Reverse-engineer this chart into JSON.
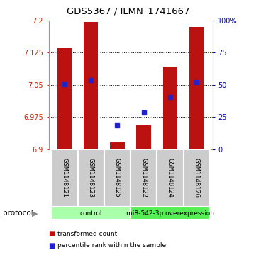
{
  "title": "GDS5367 / ILMN_1741667",
  "samples": [
    "GSM1148121",
    "GSM1148123",
    "GSM1148125",
    "GSM1148122",
    "GSM1148124",
    "GSM1148126"
  ],
  "bar_tops": [
    7.135,
    7.196,
    6.916,
    6.956,
    7.092,
    7.185
  ],
  "bar_bottom": 6.9,
  "blue_vals": [
    7.052,
    7.062,
    6.955,
    6.986,
    7.022,
    7.056
  ],
  "ylim": [
    6.9,
    7.2
  ],
  "y_ticks": [
    6.9,
    6.975,
    7.05,
    7.125,
    7.2
  ],
  "y_tick_labels": [
    "6.9",
    "6.975",
    "7.05",
    "7.125",
    "7.2"
  ],
  "right_yticks": [
    0,
    25,
    50,
    75,
    100
  ],
  "right_ytick_labels": [
    "0",
    "25",
    "50",
    "75",
    "100%"
  ],
  "bar_color": "#bb1111",
  "blue_color": "#2222cc",
  "protocol_groups": [
    {
      "label": "control",
      "start": 0,
      "end": 3,
      "color": "#aaffaa"
    },
    {
      "label": "miR-542-3p overexpression",
      "start": 3,
      "end": 6,
      "color": "#55ee55"
    }
  ],
  "protocol_label": "protocol",
  "legend_items": [
    {
      "label": "transformed count",
      "color": "#bb1111"
    },
    {
      "label": "percentile rank within the sample",
      "color": "#2222cc"
    }
  ],
  "bar_width": 0.55,
  "background_color": "#ffffff",
  "grid_color": "#000000",
  "tick_label_color_left": "#cc2200",
  "tick_label_color_right": "#0000cc"
}
